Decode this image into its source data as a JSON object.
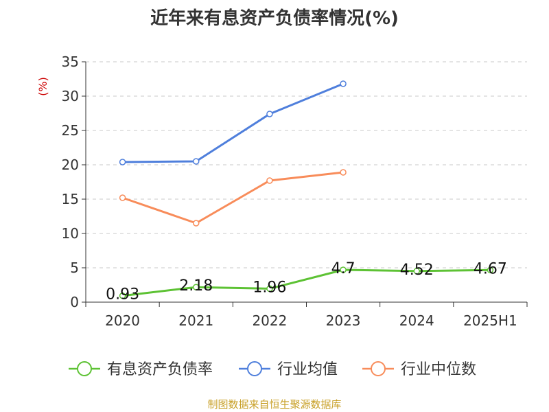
{
  "title": "近年来有息资产负债率情况(%)",
  "source": "制图数据来自恒生聚源数据库",
  "chart_data": {
    "type": "line",
    "categories": [
      "2020",
      "2021",
      "2022",
      "2023",
      "2024",
      "2025H1"
    ],
    "y_unit": "(%)",
    "ylim": [
      0,
      35
    ],
    "yticks": [
      0,
      5,
      10,
      15,
      20,
      25,
      30,
      35
    ],
    "grid": true,
    "legend_position": "bottom",
    "series": [
      {
        "name": "有息资产负债率",
        "color": "#5dc234",
        "values": [
          0.93,
          2.18,
          1.96,
          4.7,
          4.52,
          4.67
        ],
        "labels": [
          "0.93",
          "2.18",
          "1.96",
          "4.7",
          "4.52",
          "4.67"
        ]
      },
      {
        "name": "行业均值",
        "color": "#4f7fdc",
        "values": [
          20.4,
          20.5,
          27.4,
          31.8,
          null,
          null
        ]
      },
      {
        "name": "行业中位数",
        "color": "#f88c5a",
        "values": [
          15.2,
          11.5,
          17.7,
          18.9,
          null,
          null
        ]
      }
    ]
  }
}
